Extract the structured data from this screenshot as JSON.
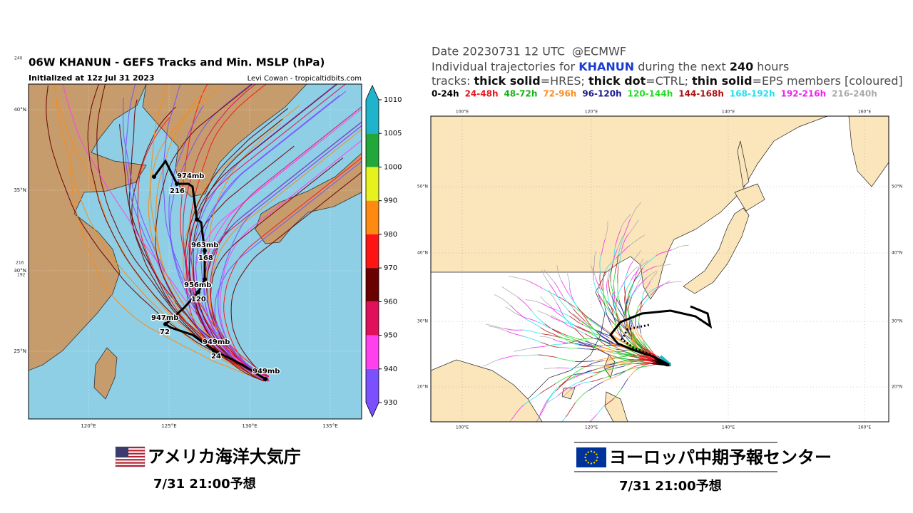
{
  "left": {
    "title": "06W KHANUN - GEFS Tracks and Min. MSLP (hPa)",
    "subtitle": "Initialized at 12z Jul 31 2023",
    "credit": "Levi Cowan - tropicaltidbits.com",
    "stray_labels": [
      "240",
      "216",
      "192"
    ],
    "lat_labels": [
      "40°N",
      "35°N",
      "30°N",
      "25°N"
    ],
    "lon_labels": [
      "120°E",
      "125°E",
      "130°E",
      "135°E"
    ],
    "colorbar": {
      "ticks": [
        1010,
        1005,
        1000,
        990,
        980,
        970,
        960,
        950,
        940,
        930
      ],
      "colors": [
        "#1fb4cc",
        "#22a83a",
        "#e6f21e",
        "#ff8a12",
        "#ff1414",
        "#6a0000",
        "#e0105a",
        "#ff40ee",
        "#7a50ff"
      ]
    },
    "track_labels": [
      "974mb",
      "216",
      "963mb",
      "168",
      "956mb",
      "120",
      "947mb",
      "72",
      "949mb",
      "24",
      "949mb"
    ],
    "caption": "アメリカ海洋大気庁",
    "time": "7/31 21:00予想"
  },
  "right": {
    "date": "Date 20230731 12 UTC",
    "source": "@ECMWF",
    "line2": [
      {
        "text": "Individual trajectories for ",
        "style": "plain"
      },
      {
        "text": "KHANUN",
        "style": "name"
      },
      {
        "text": " during the next ",
        "style": "plain"
      },
      {
        "text": "240",
        "style": "bold"
      },
      {
        "text": " hours",
        "style": "plain"
      }
    ],
    "line3": [
      {
        "text": "tracks: ",
        "style": "plain"
      },
      {
        "text": "thick solid",
        "style": "bold"
      },
      {
        "text": "=HRES; ",
        "style": "plain"
      },
      {
        "text": "thick dot",
        "style": "bold"
      },
      {
        "text": "=CTRL; ",
        "style": "plain"
      },
      {
        "text": "thin solid",
        "style": "bold"
      },
      {
        "text": "=EPS members [coloured]",
        "style": "plain"
      }
    ],
    "legend": [
      {
        "label": "0-24h",
        "color": "#000000"
      },
      {
        "label": "24-48h",
        "color": "#e8141c"
      },
      {
        "label": "48-72h",
        "color": "#1ab01a"
      },
      {
        "label": "72-96h",
        "color": "#ff8c1a"
      },
      {
        "label": "96-120h",
        "color": "#1a1a8c"
      },
      {
        "label": "120-144h",
        "color": "#22dd22"
      },
      {
        "label": "144-168h",
        "color": "#aa1010"
      },
      {
        "label": "168-192h",
        "color": "#22e0ee"
      },
      {
        "label": "192-216h",
        "color": "#ee22ee"
      },
      {
        "label": "216-240h",
        "color": "#aaaaaa"
      }
    ],
    "lon_labels": [
      "100°E",
      "120°E",
      "140°E",
      "160°E"
    ],
    "lat_labels": [
      "50°N",
      "40°N",
      "30°N",
      "20°N"
    ],
    "caption": "ヨーロッパ中期予報センター",
    "time": "7/31 21:00予想"
  }
}
